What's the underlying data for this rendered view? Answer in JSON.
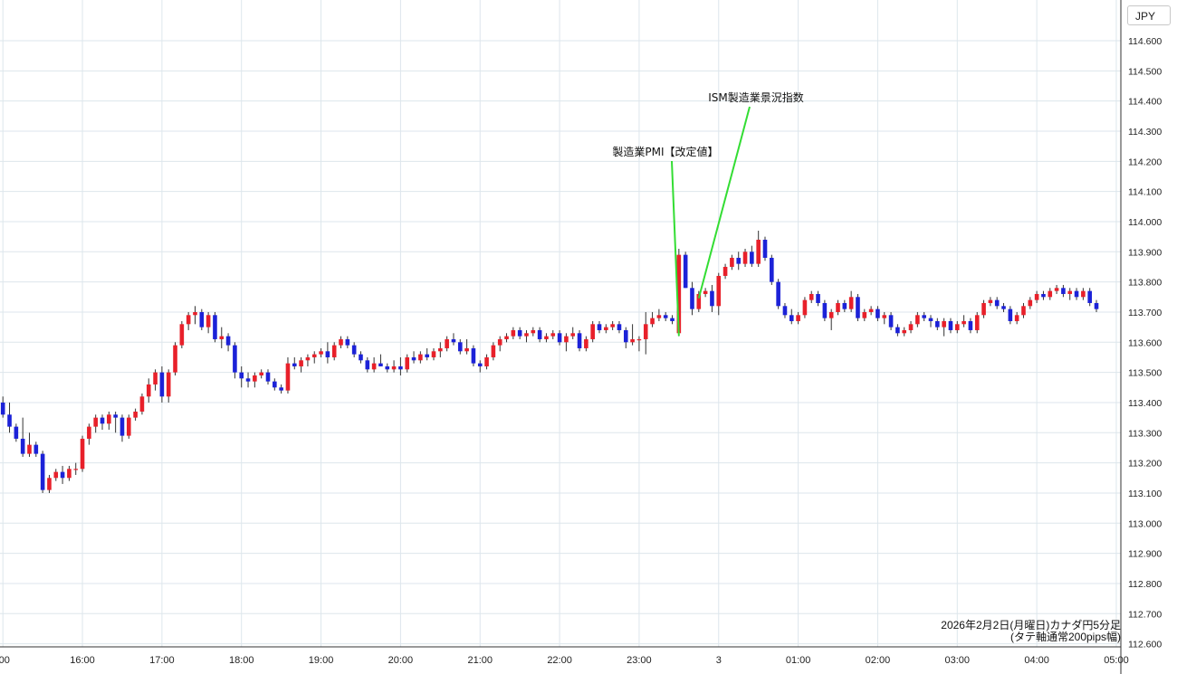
{
  "header": {
    "unit_label": "JPY"
  },
  "caption": {
    "line1": "2026年2月2日(月曜日)カナダ円5分足",
    "line2": "(タテ軸通常200pips幅)"
  },
  "colors": {
    "up": "#e8202a",
    "down": "#1c22d8",
    "grid": "#dde6ec",
    "annotation_line": "#33dd33"
  },
  "chart_data": {
    "type": "candlestick",
    "title": "",
    "xlabel": "",
    "ylabel": "",
    "ylim": [
      112.58,
      114.69
    ],
    "grid": true,
    "y_ticks": [
      112.6,
      112.7,
      112.8,
      112.9,
      113.0,
      113.1,
      113.2,
      113.3,
      113.4,
      113.5,
      113.6,
      113.7,
      113.8,
      113.9,
      114.0,
      114.1,
      114.2,
      114.3,
      114.4,
      114.5,
      114.6
    ],
    "y_tick_labels": [
      "112.600",
      "112.700",
      "112.800",
      "112.900",
      "113.000",
      "113.100",
      "113.200",
      "113.300",
      "113.400",
      "113.500",
      "113.600",
      "113.700",
      "113.800",
      "113.900",
      "114.000",
      "114.100",
      "114.200",
      "114.300",
      "114.400",
      "114.500",
      "114.600"
    ],
    "x_ticks": [
      {
        "bar": 0,
        "label": ":00"
      },
      {
        "bar": 12,
        "label": "16:00"
      },
      {
        "bar": 24,
        "label": "17:00"
      },
      {
        "bar": 36,
        "label": "18:00"
      },
      {
        "bar": 48,
        "label": "19:00"
      },
      {
        "bar": 60,
        "label": "20:00"
      },
      {
        "bar": 72,
        "label": "21:00"
      },
      {
        "bar": 84,
        "label": "22:00"
      },
      {
        "bar": 96,
        "label": "23:00"
      },
      {
        "bar": 108,
        "label": "3"
      },
      {
        "bar": 120,
        "label": "01:00"
      },
      {
        "bar": 132,
        "label": "02:00"
      },
      {
        "bar": 144,
        "label": "03:00"
      },
      {
        "bar": 156,
        "label": "04:00"
      },
      {
        "bar": 168,
        "label": "05:00"
      }
    ],
    "candles": [
      [
        113.4,
        113.42,
        113.35,
        113.36
      ],
      [
        113.36,
        113.4,
        113.3,
        113.32
      ],
      [
        113.32,
        113.33,
        113.27,
        113.28
      ],
      [
        113.28,
        113.35,
        113.22,
        113.23
      ],
      [
        113.23,
        113.3,
        113.22,
        113.26
      ],
      [
        113.26,
        113.27,
        113.22,
        113.23
      ],
      [
        113.23,
        113.24,
        113.1,
        113.11
      ],
      [
        113.11,
        113.16,
        113.1,
        113.15
      ],
      [
        113.15,
        113.18,
        113.14,
        113.17
      ],
      [
        113.17,
        113.19,
        113.13,
        113.15
      ],
      [
        113.15,
        113.19,
        113.14,
        113.18
      ],
      [
        113.18,
        113.2,
        113.16,
        113.18
      ],
      [
        113.18,
        113.29,
        113.17,
        113.28
      ],
      [
        113.28,
        113.33,
        113.26,
        113.32
      ],
      [
        113.32,
        113.36,
        113.3,
        113.35
      ],
      [
        113.35,
        113.36,
        113.31,
        113.33
      ],
      [
        113.33,
        113.37,
        113.31,
        113.36
      ],
      [
        113.36,
        113.37,
        113.3,
        113.35
      ],
      [
        113.35,
        113.36,
        113.27,
        113.29
      ],
      [
        113.29,
        113.36,
        113.28,
        113.35
      ],
      [
        113.35,
        113.38,
        113.34,
        113.37
      ],
      [
        113.37,
        113.43,
        113.36,
        113.42
      ],
      [
        113.42,
        113.48,
        113.4,
        113.46
      ],
      [
        113.46,
        113.51,
        113.44,
        113.5
      ],
      [
        113.5,
        113.52,
        113.4,
        113.42
      ],
      [
        113.42,
        113.51,
        113.4,
        113.5
      ],
      [
        113.5,
        113.6,
        113.49,
        113.59
      ],
      [
        113.59,
        113.67,
        113.58,
        113.66
      ],
      [
        113.66,
        113.7,
        113.64,
        113.69
      ],
      [
        113.69,
        113.72,
        113.66,
        113.7
      ],
      [
        113.7,
        113.71,
        113.64,
        113.65
      ],
      [
        113.65,
        113.7,
        113.63,
        113.69
      ],
      [
        113.69,
        113.7,
        113.6,
        113.61
      ],
      [
        113.61,
        113.65,
        113.58,
        113.62
      ],
      [
        113.62,
        113.63,
        113.57,
        113.59
      ],
      [
        113.59,
        113.6,
        113.48,
        113.5
      ],
      [
        113.5,
        113.52,
        113.45,
        113.48
      ],
      [
        113.48,
        113.5,
        113.45,
        113.47
      ],
      [
        113.47,
        113.5,
        113.45,
        113.49
      ],
      [
        113.49,
        113.51,
        113.48,
        113.5
      ],
      [
        113.5,
        113.51,
        113.46,
        113.47
      ],
      [
        113.47,
        113.48,
        113.44,
        113.45
      ],
      [
        113.45,
        113.46,
        113.43,
        113.44
      ],
      [
        113.44,
        113.55,
        113.43,
        113.53
      ],
      [
        113.53,
        113.55,
        113.51,
        113.52
      ],
      [
        113.52,
        113.55,
        113.5,
        113.54
      ],
      [
        113.54,
        113.56,
        113.52,
        113.55
      ],
      [
        113.55,
        113.57,
        113.53,
        113.56
      ],
      [
        113.56,
        113.58,
        113.55,
        113.57
      ],
      [
        113.57,
        113.6,
        113.53,
        113.55
      ],
      [
        113.55,
        113.6,
        113.54,
        113.59
      ],
      [
        113.59,
        113.62,
        113.58,
        113.61
      ],
      [
        113.61,
        113.62,
        113.58,
        113.59
      ],
      [
        113.59,
        113.6,
        113.55,
        113.56
      ],
      [
        113.56,
        113.57,
        113.53,
        113.54
      ],
      [
        113.54,
        113.55,
        113.5,
        113.51
      ],
      [
        113.51,
        113.55,
        113.5,
        113.53
      ],
      [
        113.53,
        113.56,
        113.52,
        113.52
      ],
      [
        113.52,
        113.53,
        113.5,
        113.51
      ],
      [
        113.51,
        113.54,
        113.5,
        113.52
      ],
      [
        113.52,
        113.55,
        113.49,
        113.51
      ],
      [
        113.51,
        113.56,
        113.5,
        113.55
      ],
      [
        113.55,
        113.57,
        113.53,
        113.54
      ],
      [
        113.54,
        113.57,
        113.53,
        113.56
      ],
      [
        113.56,
        113.58,
        113.54,
        113.55
      ],
      [
        113.55,
        113.58,
        113.54,
        113.57
      ],
      [
        113.57,
        113.6,
        113.55,
        113.58
      ],
      [
        113.58,
        113.62,
        113.57,
        113.61
      ],
      [
        113.61,
        113.63,
        113.59,
        113.6
      ],
      [
        113.6,
        113.61,
        113.56,
        113.57
      ],
      [
        113.57,
        113.61,
        113.56,
        113.58
      ],
      [
        113.58,
        113.59,
        113.52,
        113.53
      ],
      [
        113.53,
        113.54,
        113.5,
        113.52
      ],
      [
        113.52,
        113.56,
        113.51,
        113.55
      ],
      [
        113.55,
        113.6,
        113.54,
        113.59
      ],
      [
        113.59,
        113.62,
        113.57,
        113.61
      ],
      [
        113.61,
        113.63,
        113.6,
        113.62
      ],
      [
        113.62,
        113.65,
        113.61,
        113.64
      ],
      [
        113.64,
        113.65,
        113.61,
        113.62
      ],
      [
        113.62,
        113.64,
        113.6,
        113.63
      ],
      [
        113.63,
        113.65,
        113.62,
        113.64
      ],
      [
        113.64,
        113.65,
        113.6,
        113.61
      ],
      [
        113.61,
        113.63,
        113.6,
        113.62
      ],
      [
        113.62,
        113.64,
        113.61,
        113.63
      ],
      [
        113.63,
        113.64,
        113.59,
        113.6
      ],
      [
        113.6,
        113.63,
        113.57,
        113.62
      ],
      [
        113.62,
        113.65,
        113.61,
        113.63
      ],
      [
        113.63,
        113.64,
        113.57,
        113.58
      ],
      [
        113.58,
        113.62,
        113.57,
        113.61
      ],
      [
        113.61,
        113.67,
        113.6,
        113.66
      ],
      [
        113.66,
        113.67,
        113.63,
        113.64
      ],
      [
        113.64,
        113.66,
        113.63,
        113.65
      ],
      [
        113.65,
        113.67,
        113.64,
        113.66
      ],
      [
        113.66,
        113.67,
        113.63,
        113.64
      ],
      [
        113.64,
        113.65,
        113.58,
        113.6
      ],
      [
        113.6,
        113.66,
        113.59,
        113.61
      ],
      [
        113.61,
        113.62,
        113.57,
        113.61
      ],
      [
        113.61,
        113.7,
        113.56,
        113.66
      ],
      [
        113.66,
        113.7,
        113.65,
        113.68
      ],
      [
        113.68,
        113.71,
        113.67,
        113.69
      ],
      [
        113.69,
        113.7,
        113.67,
        113.68
      ],
      [
        113.68,
        113.69,
        113.66,
        113.67
      ],
      [
        113.63,
        113.91,
        113.62,
        113.89
      ],
      [
        113.89,
        113.9,
        113.78,
        113.78
      ],
      [
        113.78,
        113.8,
        113.69,
        113.71
      ],
      [
        113.71,
        113.77,
        113.7,
        113.76
      ],
      [
        113.76,
        113.78,
        113.75,
        113.77
      ],
      [
        113.77,
        113.79,
        113.7,
        113.72
      ],
      [
        113.72,
        113.83,
        113.69,
        113.82
      ],
      [
        113.82,
        113.86,
        113.81,
        113.85
      ],
      [
        113.85,
        113.89,
        113.84,
        113.88
      ],
      [
        113.88,
        113.9,
        113.84,
        113.86
      ],
      [
        113.86,
        113.91,
        113.85,
        113.9
      ],
      [
        113.9,
        113.92,
        113.85,
        113.86
      ],
      [
        113.86,
        113.97,
        113.85,
        113.94
      ],
      [
        113.94,
        113.95,
        113.87,
        113.88
      ],
      [
        113.88,
        113.89,
        113.79,
        113.8
      ],
      [
        113.8,
        113.81,
        113.71,
        113.72
      ],
      [
        113.72,
        113.73,
        113.68,
        113.69
      ],
      [
        113.69,
        113.71,
        113.66,
        113.67
      ],
      [
        113.67,
        113.7,
        113.66,
        113.69
      ],
      [
        113.69,
        113.75,
        113.68,
        113.74
      ],
      [
        113.74,
        113.77,
        113.73,
        113.76
      ],
      [
        113.76,
        113.77,
        113.72,
        113.73
      ],
      [
        113.73,
        113.74,
        113.67,
        113.68
      ],
      [
        113.68,
        113.71,
        113.64,
        113.7
      ],
      [
        113.7,
        113.74,
        113.69,
        113.73
      ],
      [
        113.73,
        113.74,
        113.7,
        113.71
      ],
      [
        113.71,
        113.77,
        113.7,
        113.75
      ],
      [
        113.75,
        113.76,
        113.67,
        113.68
      ],
      [
        113.68,
        113.71,
        113.67,
        113.7
      ],
      [
        113.7,
        113.72,
        113.69,
        113.71
      ],
      [
        113.71,
        113.72,
        113.67,
        113.68
      ],
      [
        113.68,
        113.7,
        113.66,
        113.69
      ],
      [
        113.69,
        113.7,
        113.64,
        113.65
      ],
      [
        113.65,
        113.66,
        113.62,
        113.63
      ],
      [
        113.63,
        113.65,
        113.62,
        113.64
      ],
      [
        113.64,
        113.67,
        113.63,
        113.66
      ],
      [
        113.66,
        113.7,
        113.65,
        113.69
      ],
      [
        113.69,
        113.7,
        113.67,
        113.68
      ],
      [
        113.68,
        113.69,
        113.65,
        113.67
      ],
      [
        113.67,
        113.68,
        113.64,
        113.65
      ],
      [
        113.65,
        113.68,
        113.62,
        113.67
      ],
      [
        113.67,
        113.68,
        113.63,
        113.64
      ],
      [
        113.64,
        113.67,
        113.63,
        113.66
      ],
      [
        113.66,
        113.69,
        113.65,
        113.67
      ],
      [
        113.67,
        113.68,
        113.63,
        113.64
      ],
      [
        113.64,
        113.7,
        113.63,
        113.69
      ],
      [
        113.69,
        113.74,
        113.68,
        113.73
      ],
      [
        113.73,
        113.75,
        113.72,
        113.74
      ],
      [
        113.74,
        113.75,
        113.71,
        113.72
      ],
      [
        113.72,
        113.73,
        113.7,
        113.71
      ],
      [
        113.71,
        113.72,
        113.66,
        113.67
      ],
      [
        113.67,
        113.7,
        113.66,
        113.69
      ],
      [
        113.69,
        113.73,
        113.68,
        113.72
      ],
      [
        113.72,
        113.75,
        113.71,
        113.74
      ],
      [
        113.74,
        113.77,
        113.73,
        113.76
      ],
      [
        113.76,
        113.77,
        113.74,
        113.75
      ],
      [
        113.75,
        113.78,
        113.74,
        113.77
      ],
      [
        113.77,
        113.79,
        113.76,
        113.78
      ],
      [
        113.78,
        113.79,
        113.75,
        113.76
      ],
      [
        113.76,
        113.78,
        113.74,
        113.77
      ],
      [
        113.77,
        113.78,
        113.74,
        113.75
      ],
      [
        113.75,
        113.78,
        113.74,
        113.77
      ],
      [
        113.77,
        113.78,
        113.72,
        113.73
      ],
      [
        113.73,
        113.74,
        113.7,
        113.71
      ]
    ],
    "annotations": [
      {
        "text": "製造業PMI【改定値】",
        "bar": 102
      },
      {
        "text": "ISM製造業景況指数",
        "bar": 105
      }
    ]
  }
}
